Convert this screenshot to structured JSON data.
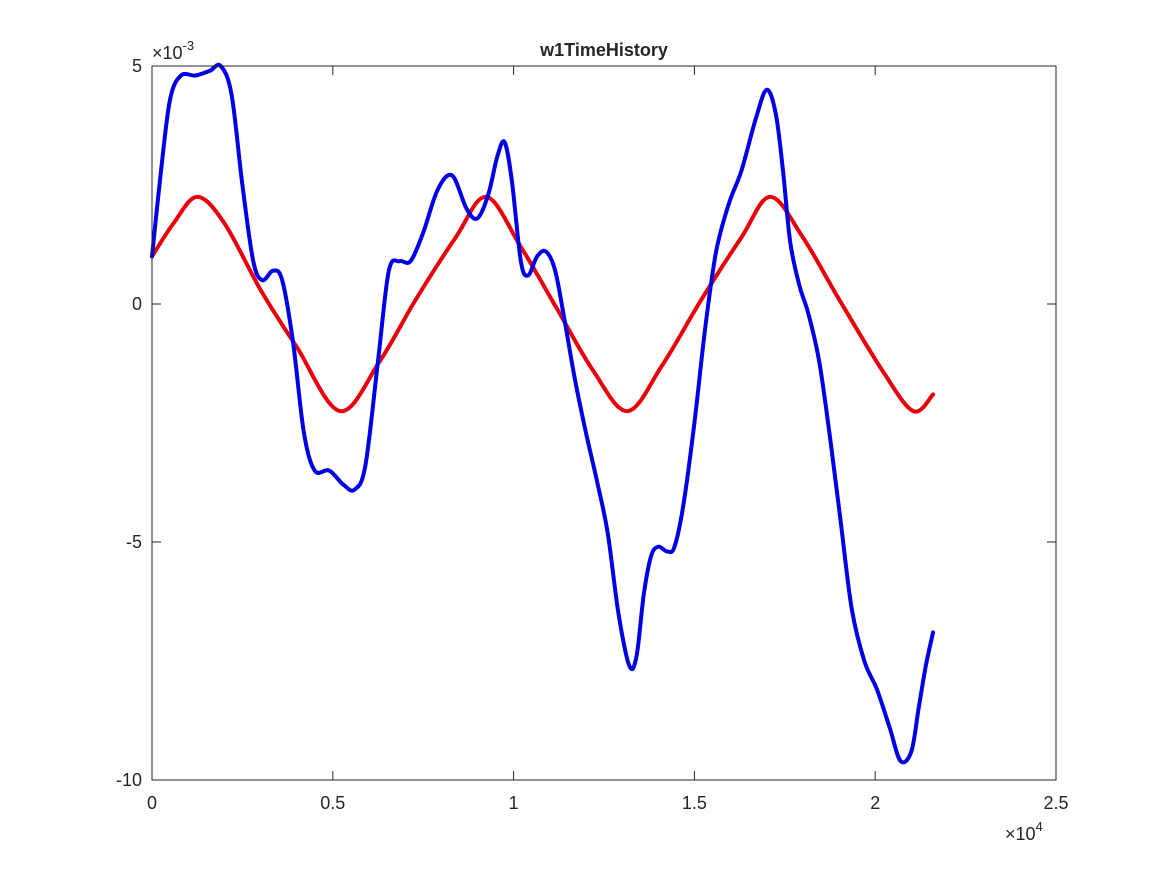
{
  "chart_data": {
    "type": "line",
    "title": "w1TimeHistory",
    "xlabel": "",
    "ylabel": "",
    "xlim": [
      0,
      25000
    ],
    "ylim": [
      -0.01,
      0.005
    ],
    "x_ticks": [
      0,
      5000,
      10000,
      15000,
      20000,
      25000
    ],
    "x_tick_labels": [
      "0",
      "0.5",
      "1",
      "1.5",
      "2",
      "2.5"
    ],
    "y_ticks": [
      -0.01,
      -0.005,
      0,
      0.005
    ],
    "y_tick_labels": [
      "-10",
      "-5",
      "0",
      "5"
    ],
    "x_exponent": {
      "base": "×10",
      "power": "4"
    },
    "y_exponent": {
      "base": "×10",
      "power": "-3"
    },
    "grid": false,
    "box": true,
    "series": [
      {
        "color": "#e8000b",
        "x": [
          0,
          600,
          1250,
          2000,
          3000,
          4000,
          5200,
          6300,
          7300,
          8400,
          9250,
          10200,
          11200,
          12200,
          13150,
          14100,
          15200,
          16300,
          17100,
          18000,
          19000,
          20200,
          21050,
          21600
        ],
        "y": [
          0.001,
          0.0017,
          0.00225,
          0.0017,
          0.0003,
          -0.0009,
          -0.00225,
          -0.0012,
          0.0001,
          0.0014,
          0.00225,
          0.0012,
          -0.0001,
          -0.0014,
          -0.00225,
          -0.0013,
          0.0001,
          0.0014,
          0.00225,
          0.0014,
          0.0001,
          -0.0014,
          -0.00225,
          -0.0019
        ]
      },
      {
        "color": "#0000e6",
        "x": [
          0,
          250,
          500,
          800,
          1200,
          1600,
          1900,
          2200,
          2500,
          2800,
          3050,
          3350,
          3600,
          3900,
          4200,
          4500,
          4900,
          5300,
          5600,
          5900,
          6250,
          6550,
          6850,
          7150,
          7500,
          7900,
          8300,
          8700,
          9000,
          9300,
          9550,
          9750,
          9950,
          10200,
          10400,
          10650,
          10900,
          11150,
          11400,
          11700,
          12000,
          12300,
          12600,
          12900,
          13200,
          13400,
          13600,
          13800,
          14000,
          14250,
          14450,
          14700,
          15000,
          15300,
          15600,
          15950,
          16300,
          16700,
          17000,
          17250,
          17450,
          17650,
          17900,
          18150,
          18450,
          18750,
          19050,
          19350,
          19700,
          20050,
          20400,
          20700,
          21000,
          21200,
          21400,
          21600
        ],
        "y": [
          0.001,
          0.0028,
          0.0043,
          0.0048,
          0.0048,
          0.0049,
          0.005,
          0.0044,
          0.0025,
          0.0009,
          0.0005,
          0.0007,
          0.0005,
          -0.0008,
          -0.0027,
          -0.0035,
          -0.0035,
          -0.0038,
          -0.0039,
          -0.0034,
          -0.0012,
          0.0007,
          0.0009,
          0.0009,
          0.0015,
          0.0024,
          0.0027,
          0.002,
          0.0018,
          0.0023,
          0.0031,
          0.0034,
          0.0026,
          0.0009,
          0.0006,
          0.001,
          0.0011,
          0.0007,
          -0.0003,
          -0.0016,
          -0.0027,
          -0.0037,
          -0.0048,
          -0.0065,
          -0.0076,
          -0.0074,
          -0.0061,
          -0.0053,
          -0.0051,
          -0.0052,
          -0.0051,
          -0.0042,
          -0.0025,
          -0.0005,
          0.0011,
          0.0021,
          0.0028,
          0.0039,
          0.0045,
          0.004,
          0.0028,
          0.0013,
          0.0004,
          -0.0002,
          -0.0012,
          -0.0028,
          -0.0046,
          -0.0064,
          -0.0075,
          -0.0081,
          -0.0089,
          -0.0096,
          -0.0094,
          -0.0085,
          -0.0076,
          -0.0069
        ]
      }
    ]
  }
}
